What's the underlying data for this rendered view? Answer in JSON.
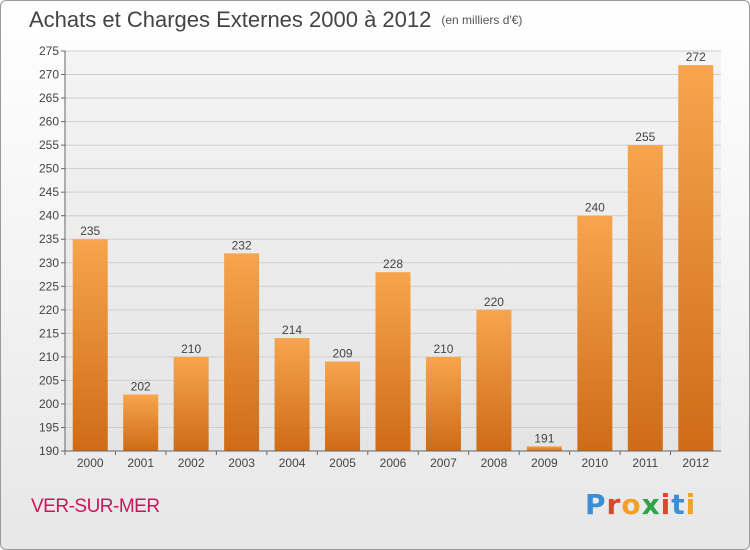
{
  "title": "Achats et Charges Externes 2000 à 2012",
  "unit": "(en milliers d'€)",
  "commune": "VER-SUR-MER",
  "logo": {
    "text": "Proxiti",
    "colors": [
      "#3b8fd6",
      "#e0452b",
      "#f0a12a",
      "#2fa24a",
      "#e0452b",
      "#3b8fd6",
      "#f0a12a"
    ]
  },
  "colors": {
    "bar_top": "#f7a54e",
    "bar_bottom": "#cf6b16",
    "grid": "#cfcfcf",
    "axis": "#666666",
    "text": "#444444"
  },
  "chart_data": {
    "type": "bar",
    "categories": [
      "2000",
      "2001",
      "2002",
      "2003",
      "2004",
      "2005",
      "2006",
      "2007",
      "2008",
      "2009",
      "2010",
      "2011",
      "2012"
    ],
    "values": [
      235,
      202,
      210,
      232,
      214,
      209,
      228,
      210,
      220,
      191,
      240,
      255,
      272
    ],
    "title": "Achats et Charges Externes 2000 à 2012",
    "xlabel": "",
    "ylabel": "",
    "ylim": [
      190,
      275
    ],
    "yticks": [
      190,
      195,
      200,
      205,
      210,
      215,
      220,
      225,
      230,
      235,
      240,
      245,
      250,
      255,
      260,
      265,
      270,
      275
    ],
    "grid": true,
    "data_labels": true
  }
}
